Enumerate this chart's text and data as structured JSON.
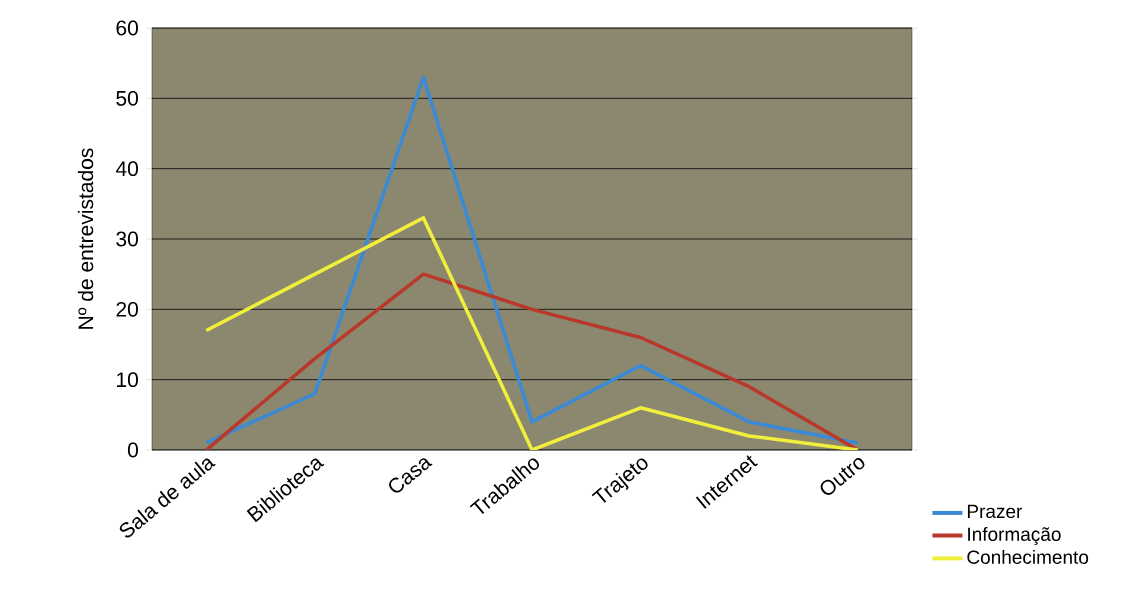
{
  "chart_data": {
    "type": "line",
    "ylabel": "Nº de entrevistados",
    "categories": [
      "Sala de aula",
      "Biblioteca",
      "Casa",
      "Trabalho",
      "Trajeto",
      "Internet",
      "Outro"
    ],
    "series": [
      {
        "name": "Prazer",
        "color": "#3a8ad6",
        "values": [
          1,
          8,
          53,
          4,
          12,
          4,
          1
        ]
      },
      {
        "name": "Informação",
        "color": "#b8382a",
        "values": [
          0,
          13,
          25,
          20,
          16,
          9,
          0
        ]
      },
      {
        "name": "Conhecimento",
        "color": "#f2ee3c",
        "values": [
          17,
          25,
          33,
          0,
          6,
          2,
          0
        ]
      }
    ],
    "ylim": [
      0,
      60
    ],
    "yticks": [
      0,
      10,
      20,
      30,
      40,
      50,
      60
    ],
    "grid": "y",
    "legend": "bottom right",
    "marker": "none",
    "line_style": "solid"
  }
}
